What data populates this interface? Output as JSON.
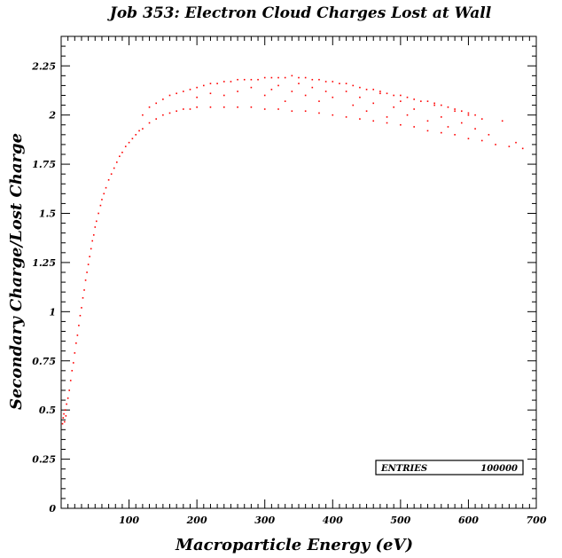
{
  "chart_data": {
    "type": "scatter",
    "title": "Job 353: Electron Cloud Charges Lost at Wall",
    "xlabel": "Macroparticle Energy (eV)",
    "ylabel": "Secondary Charge/Lost Charge",
    "xlim": [
      0,
      700
    ],
    "ylim": [
      0,
      2.4
    ],
    "x_ticks": [
      100,
      200,
      300,
      400,
      500,
      600,
      700
    ],
    "x_tick_labels": [
      "100",
      "200",
      "300",
      "400",
      "500",
      "600",
      "700"
    ],
    "y_ticks": [
      0,
      0.25,
      0.5,
      0.75,
      1,
      1.25,
      1.5,
      1.75,
      2,
      2.25
    ],
    "y_tick_labels": [
      "0",
      "0.25",
      "0.5",
      "0.75",
      "1",
      "1.25",
      "1.5",
      "1.75",
      "2",
      "2.25"
    ],
    "grid": false,
    "marker_color": "#ff0000",
    "stats_box": {
      "label": "ENTRIES",
      "value": "100000",
      "placement": "bottom-right"
    },
    "series": [
      {
        "values": [
          [
            2,
            0.43
          ],
          [
            3,
            0.46
          ],
          [
            4,
            0.48
          ],
          [
            5,
            0.44
          ],
          [
            6,
            0.5
          ],
          [
            7,
            0.47
          ],
          [
            8,
            0.53
          ],
          [
            10,
            0.56
          ],
          [
            12,
            0.6
          ],
          [
            14,
            0.65
          ],
          [
            16,
            0.7
          ],
          [
            18,
            0.74
          ],
          [
            20,
            0.79
          ],
          [
            22,
            0.84
          ],
          [
            24,
            0.88
          ],
          [
            26,
            0.93
          ],
          [
            28,
            0.98
          ],
          [
            30,
            1.02
          ],
          [
            32,
            1.07
          ],
          [
            34,
            1.11
          ],
          [
            36,
            1.16
          ],
          [
            38,
            1.2
          ],
          [
            40,
            1.24
          ],
          [
            42,
            1.28
          ],
          [
            44,
            1.32
          ],
          [
            46,
            1.36
          ],
          [
            48,
            1.39
          ],
          [
            50,
            1.43
          ],
          [
            52,
            1.46
          ],
          [
            55,
            1.5
          ],
          [
            58,
            1.54
          ],
          [
            60,
            1.57
          ],
          [
            63,
            1.6
          ],
          [
            66,
            1.63
          ],
          [
            70,
            1.67
          ],
          [
            74,
            1.7
          ],
          [
            78,
            1.73
          ],
          [
            82,
            1.76
          ],
          [
            86,
            1.79
          ],
          [
            90,
            1.81
          ],
          [
            95,
            1.84
          ],
          [
            100,
            1.86
          ],
          [
            105,
            1.88
          ],
          [
            110,
            1.9
          ],
          [
            115,
            1.92
          ],
          [
            120,
            1.93
          ],
          [
            130,
            1.96
          ],
          [
            140,
            1.98
          ],
          [
            150,
            2.0
          ],
          [
            160,
            2.01
          ],
          [
            170,
            2.02
          ],
          [
            180,
            2.03
          ],
          [
            190,
            2.03
          ],
          [
            200,
            2.04
          ],
          [
            220,
            2.04
          ],
          [
            240,
            2.04
          ],
          [
            260,
            2.04
          ],
          [
            280,
            2.04
          ],
          [
            300,
            2.03
          ],
          [
            320,
            2.03
          ],
          [
            340,
            2.02
          ],
          [
            360,
            2.02
          ],
          [
            380,
            2.01
          ],
          [
            400,
            2.0
          ],
          [
            420,
            1.99
          ],
          [
            440,
            1.98
          ],
          [
            460,
            1.97
          ],
          [
            480,
            1.96
          ],
          [
            500,
            1.95
          ],
          [
            520,
            1.94
          ],
          [
            540,
            1.92
          ],
          [
            560,
            1.91
          ],
          [
            580,
            1.9
          ],
          [
            600,
            1.88
          ],
          [
            620,
            1.87
          ],
          [
            640,
            1.85
          ],
          [
            660,
            1.84
          ],
          [
            680,
            1.83
          ],
          [
            120,
            2.0
          ],
          [
            130,
            2.04
          ],
          [
            140,
            2.06
          ],
          [
            150,
            2.08
          ],
          [
            160,
            2.1
          ],
          [
            170,
            2.11
          ],
          [
            180,
            2.12
          ],
          [
            190,
            2.13
          ],
          [
            200,
            2.14
          ],
          [
            210,
            2.15
          ],
          [
            220,
            2.16
          ],
          [
            230,
            2.16
          ],
          [
            240,
            2.17
          ],
          [
            250,
            2.17
          ],
          [
            260,
            2.18
          ],
          [
            270,
            2.18
          ],
          [
            280,
            2.18
          ],
          [
            290,
            2.18
          ],
          [
            300,
            2.19
          ],
          [
            310,
            2.19
          ],
          [
            320,
            2.19
          ],
          [
            330,
            2.19
          ],
          [
            340,
            2.2
          ],
          [
            350,
            2.19
          ],
          [
            360,
            2.19
          ],
          [
            370,
            2.18
          ],
          [
            380,
            2.18
          ],
          [
            390,
            2.17
          ],
          [
            400,
            2.17
          ],
          [
            410,
            2.16
          ],
          [
            420,
            2.16
          ],
          [
            430,
            2.15
          ],
          [
            440,
            2.14
          ],
          [
            450,
            2.13
          ],
          [
            460,
            2.13
          ],
          [
            470,
            2.12
          ],
          [
            480,
            2.11
          ],
          [
            490,
            2.1
          ],
          [
            500,
            2.1
          ],
          [
            510,
            2.09
          ],
          [
            520,
            2.08
          ],
          [
            530,
            2.07
          ],
          [
            540,
            2.07
          ],
          [
            550,
            2.06
          ],
          [
            560,
            2.05
          ],
          [
            570,
            2.04
          ],
          [
            580,
            2.03
          ],
          [
            590,
            2.02
          ],
          [
            600,
            2.01
          ],
          [
            610,
            2.0
          ],
          [
            620,
            1.98
          ],
          [
            200,
            2.09
          ],
          [
            220,
            2.11
          ],
          [
            240,
            2.1
          ],
          [
            260,
            2.12
          ],
          [
            280,
            2.14
          ],
          [
            300,
            2.1
          ],
          [
            310,
            2.13
          ],
          [
            320,
            2.15
          ],
          [
            330,
            2.07
          ],
          [
            340,
            2.12
          ],
          [
            350,
            2.16
          ],
          [
            360,
            2.1
          ],
          [
            370,
            2.14
          ],
          [
            380,
            2.07
          ],
          [
            390,
            2.12
          ],
          [
            400,
            2.09
          ],
          [
            420,
            2.12
          ],
          [
            430,
            2.05
          ],
          [
            440,
            2.09
          ],
          [
            450,
            2.02
          ],
          [
            460,
            2.06
          ],
          [
            470,
            2.11
          ],
          [
            480,
            1.99
          ],
          [
            490,
            2.04
          ],
          [
            500,
            2.07
          ],
          [
            510,
            2.0
          ],
          [
            520,
            2.03
          ],
          [
            540,
            1.97
          ],
          [
            550,
            2.05
          ],
          [
            560,
            1.99
          ],
          [
            570,
            1.94
          ],
          [
            580,
            2.02
          ],
          [
            590,
            1.96
          ],
          [
            600,
            2.0
          ],
          [
            610,
            1.93
          ],
          [
            630,
            1.9
          ],
          [
            650,
            1.97
          ],
          [
            670,
            1.86
          ]
        ]
      }
    ]
  }
}
